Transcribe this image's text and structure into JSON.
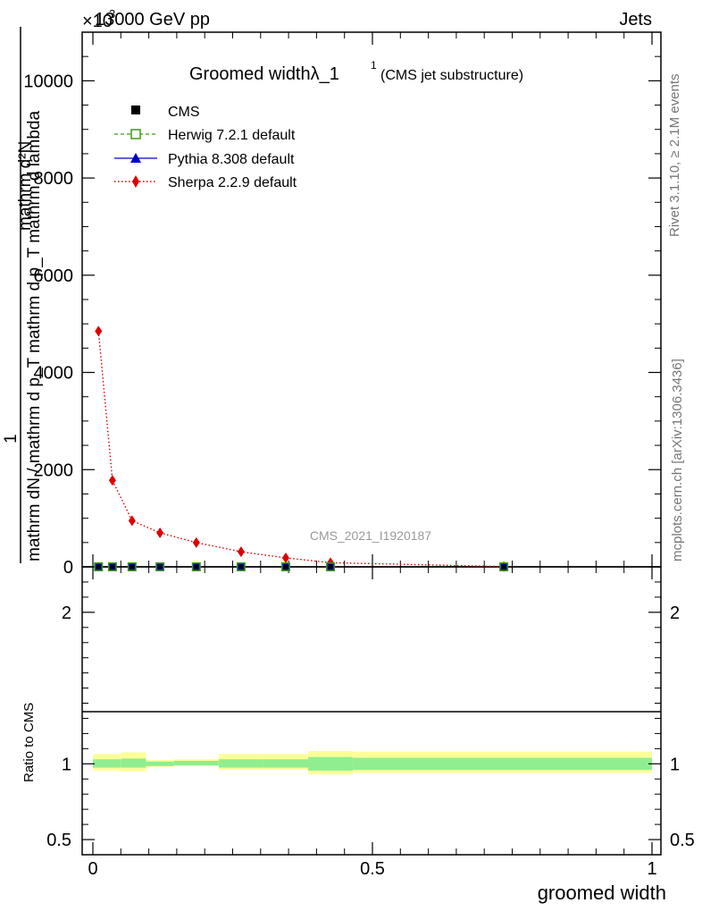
{
  "header": {
    "beam": "13000 GeV pp",
    "category": "Jets",
    "exponent": "×10",
    "exponent_power": "3"
  },
  "side_text": {
    "rivet": "Rivet 3.1.10, ≥ 2.1M events",
    "source": "mcplots.cern.ch [arXiv:1306.3436]"
  },
  "chart_data": [
    {
      "type": "line",
      "title": "Groomed widthλ_1",
      "title_sup": "1",
      "subtitle": "(CMS jet substructure)",
      "watermark": "CMS_2021_I1920187",
      "ylabel_num": "1",
      "ylabel_den": "mathrm dN / mathrm d p_T mathrm d p_T mathrm d lambda",
      "ylabel_top": "mathrm d²N",
      "xlim": [
        0,
        1
      ],
      "ylim": [
        0,
        11000
      ],
      "y_multiplier": "×10^3",
      "yticks": [
        0,
        2000,
        4000,
        6000,
        8000,
        10000
      ],
      "ytick_labels": [
        "0",
        "2000",
        "4000",
        "6000",
        "8000",
        "10000"
      ],
      "grid": false,
      "legend_position": "top-left",
      "x": [
        0.01,
        0.035,
        0.07,
        0.12,
        0.185,
        0.265,
        0.345,
        0.425,
        0.735
      ],
      "series": [
        {
          "name": "CMS",
          "marker": "square",
          "color": "#000000",
          "values": [
            0,
            0,
            0,
            0,
            0,
            0,
            0,
            0,
            0
          ]
        },
        {
          "name": "Herwig 7.2.1 default",
          "marker": "open-square",
          "color": "#3a9a1a",
          "values": [
            0,
            0,
            0,
            0,
            0,
            0,
            0,
            0,
            0
          ]
        },
        {
          "name": "Pythia 8.308 default",
          "marker": "triangle",
          "color": "#0000cc",
          "values": [
            0,
            0,
            0,
            0,
            0,
            0,
            0,
            0,
            0
          ]
        },
        {
          "name": "Sherpa 2.2.9 default",
          "marker": "diamond",
          "color": "#dd0000",
          "values": [
            4850,
            1780,
            950,
            700,
            500,
            310,
            185,
            85,
            5
          ]
        }
      ]
    },
    {
      "type": "area",
      "ylabel": "Ratio to CMS",
      "xlabel": "groomed width",
      "xlim": [
        0,
        1
      ],
      "ylim": [
        0.4,
        2.3
      ],
      "yticks": [
        0.5,
        1,
        2
      ],
      "ytick_labels": [
        "0.5",
        "1",
        "2"
      ],
      "xticks": [
        0,
        0.5,
        1
      ],
      "xtick_labels": [
        "0",
        "0.5",
        "1"
      ],
      "bin_edges": [
        0,
        0.05,
        0.095,
        0.145,
        0.225,
        0.305,
        0.385,
        0.465,
        1.0
      ],
      "inner_band": {
        "name": "stat",
        "color": "#90ee90",
        "lower": [
          0.975,
          0.975,
          0.985,
          0.99,
          0.975,
          0.975,
          0.955,
          0.96
        ],
        "upper": [
          1.03,
          1.035,
          1.015,
          1.02,
          1.03,
          1.03,
          1.045,
          1.04
        ]
      },
      "outer_band": {
        "name": "total",
        "color": "#ffff99",
        "lower": [
          0.955,
          0.95,
          0.98,
          0.985,
          0.96,
          0.96,
          0.93,
          0.94
        ],
        "upper": [
          1.065,
          1.075,
          1.025,
          1.03,
          1.065,
          1.065,
          1.085,
          1.08
        ]
      },
      "reference": 1
    }
  ]
}
